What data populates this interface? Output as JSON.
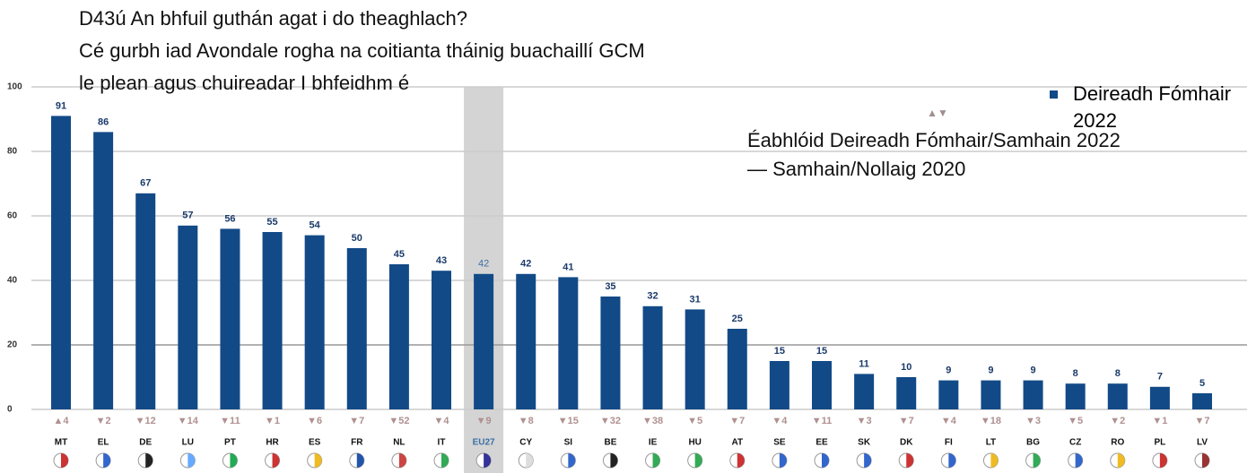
{
  "chart_data": {
    "type": "bar",
    "title_lines": [
      "D43ú An bhfuil guthán agat i do theaghlach?",
      "Cé gurbh iad Avondale rogha na coitianta tháinig buachaillí GCM",
      "le plean agus chuireadar I bhfeidhm é"
    ],
    "categories": [
      "MT",
      "EL",
      "DE",
      "LU",
      "PT",
      "HR",
      "ES",
      "FR",
      "NL",
      "IT",
      "EU27",
      "CY",
      "SI",
      "BE",
      "IE",
      "HU",
      "AT",
      "SE",
      "EE",
      "SK",
      "DK",
      "FI",
      "LT",
      "BG",
      "CZ",
      "RO",
      "PL",
      "LV"
    ],
    "series": [
      {
        "name": "Deireadh Fómhair 2022",
        "color": "#124a87",
        "values": [
          91,
          86,
          67,
          57,
          56,
          55,
          54,
          50,
          45,
          43,
          42,
          42,
          41,
          35,
          32,
          31,
          25,
          15,
          15,
          11,
          10,
          9,
          9,
          9,
          8,
          8,
          7,
          5
        ]
      }
    ],
    "change_labels": [
      "▲4",
      "▼2",
      "▼12",
      "▼14",
      "▼11",
      "▼1",
      "▼6",
      "▼7",
      "▼52",
      "▼4",
      "▼9",
      "▼8",
      "▼15",
      "▼32",
      "▼38",
      "▼5",
      "▼7",
      "▼4",
      "▼11",
      "▼3",
      "▼7",
      "▼4",
      "▼18",
      "▼3",
      "▼5",
      "▼2",
      "▼1",
      "▼7"
    ],
    "highlight": "EU27",
    "change_legend_symbol": "▲▼",
    "change_legend_lines": [
      "Éabhlóid Deireadh Fómhair/Samhain 2022",
      "— Samhain/Nollaig 2020"
    ],
    "ylim": [
      0,
      100
    ],
    "yticks": [
      0,
      20,
      40,
      60,
      80,
      100
    ],
    "grid": true
  }
}
